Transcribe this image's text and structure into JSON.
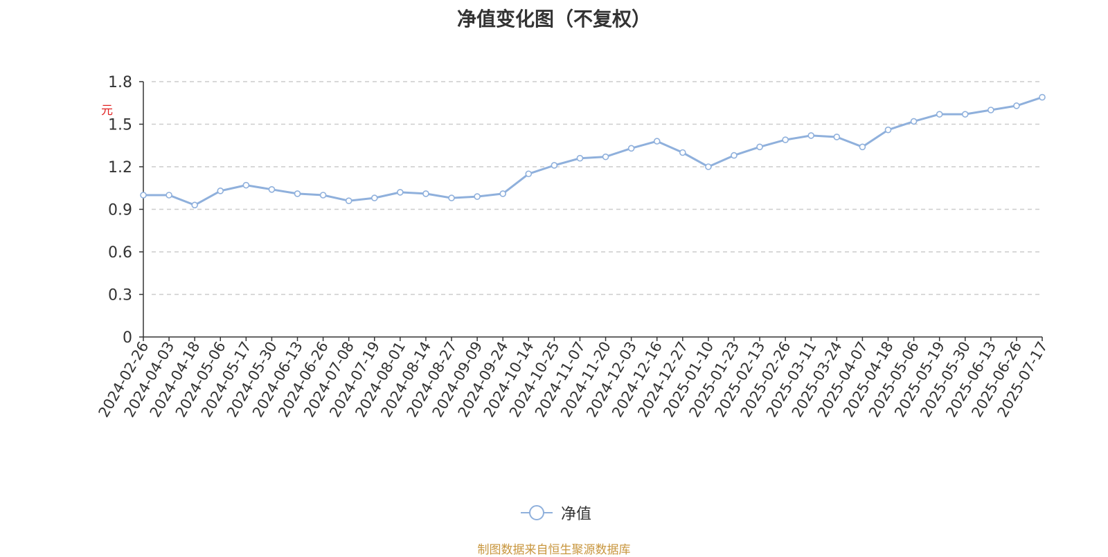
{
  "title": "净值变化图（不复权）",
  "source": "制图数据来自恒生聚源数据库",
  "colors": {
    "line": "#8fb0dc",
    "axis": "#333333",
    "grid": "#cccccc",
    "unit": "#e02020",
    "source": "#c8963e"
  },
  "chart_data": {
    "type": "line",
    "ylabel": "元",
    "ylim": [
      0,
      1.8
    ],
    "yticks": [
      "0",
      "0.3",
      "0.6",
      "0.9",
      "1.2",
      "1.5",
      "1.8"
    ],
    "grid": true,
    "legend_position": "bottom-center",
    "categories": [
      "2024-02-26",
      "2024-04-03",
      "2024-04-18",
      "2024-05-06",
      "2024-05-17",
      "2024-05-30",
      "2024-06-13",
      "2024-06-26",
      "2024-07-08",
      "2024-07-19",
      "2024-08-01",
      "2024-08-14",
      "2024-08-27",
      "2024-09-09",
      "2024-09-24",
      "2024-10-14",
      "2024-10-25",
      "2024-11-07",
      "2024-11-20",
      "2024-12-03",
      "2024-12-16",
      "2024-12-27",
      "2025-01-10",
      "2025-01-23",
      "2025-02-13",
      "2025-02-26",
      "2025-03-11",
      "2025-03-24",
      "2025-04-07",
      "2025-04-18",
      "2025-05-06",
      "2025-05-19",
      "2025-05-30",
      "2025-06-13",
      "2025-06-26",
      "2025-07-17"
    ],
    "series": [
      {
        "name": "净值",
        "values": [
          1.0,
          1.0,
          0.93,
          1.03,
          1.07,
          1.04,
          1.01,
          1.0,
          0.96,
          0.98,
          1.02,
          1.01,
          0.98,
          0.99,
          1.01,
          1.15,
          1.21,
          1.26,
          1.27,
          1.33,
          1.38,
          1.3,
          1.2,
          1.28,
          1.34,
          1.39,
          1.42,
          1.41,
          1.34,
          1.46,
          1.52,
          1.57,
          1.57,
          1.6,
          1.63,
          1.69
        ]
      }
    ]
  }
}
